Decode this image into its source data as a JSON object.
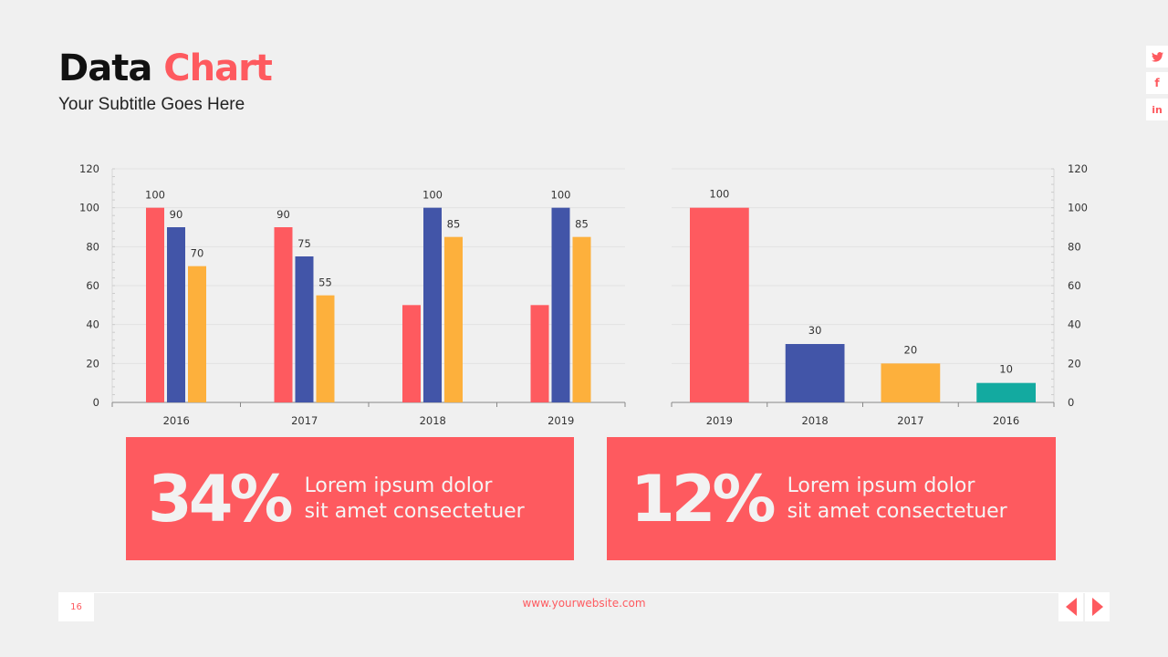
{
  "header": {
    "title_main": "Data",
    "title_accent": "Chart",
    "subtitle": "Your Subtitle Goes Here"
  },
  "social": [
    {
      "icon": "twitter-icon",
      "glyph": "🐦"
    },
    {
      "icon": "facebook-icon",
      "glyph": "f"
    },
    {
      "icon": "linkedin-icon",
      "glyph": "in"
    }
  ],
  "colors": {
    "accent": "#fe5a5f",
    "blue": "#4255a8",
    "orange": "#fdb03c",
    "teal": "#13aaa0"
  },
  "chart_data": [
    {
      "type": "bar",
      "categories": [
        "2016",
        "2017",
        "2018",
        "2019"
      ],
      "ylim": [
        0,
        120
      ],
      "yticks": [
        0,
        20,
        40,
        60,
        80,
        100,
        120
      ],
      "axis": "left",
      "grid": true,
      "series": [
        {
          "values": [
            100,
            90,
            50,
            50
          ],
          "labels": [
            "100",
            "90",
            "",
            ""
          ],
          "color": "#fe5a5f"
        },
        {
          "values": [
            90,
            75,
            100,
            100
          ],
          "labels": [
            "90",
            "75",
            "100",
            "100"
          ],
          "color": "#4255a8"
        },
        {
          "values": [
            70,
            55,
            85,
            85
          ],
          "labels": [
            "70",
            "55",
            "85",
            "85"
          ],
          "color": "#fdb03c"
        }
      ]
    },
    {
      "type": "bar",
      "categories": [
        "2019",
        "2018",
        "2017",
        "2016"
      ],
      "ylim": [
        0,
        120
      ],
      "yticks": [
        0,
        20,
        40,
        60,
        80,
        100,
        120
      ],
      "axis": "right",
      "grid": true,
      "values": [
        100,
        30,
        20,
        10
      ],
      "labels": [
        "100",
        "30",
        "20",
        "10"
      ],
      "colors": [
        "#fe5a5f",
        "#4255a8",
        "#fdb03c",
        "#13aaa0"
      ]
    }
  ],
  "cards": [
    {
      "value": "34%",
      "line1": "Lorem ipsum dolor",
      "line2": "sit amet consectetuer"
    },
    {
      "value": "12%",
      "line1": "Lorem ipsum dolor",
      "line2": "sit amet consectetuer"
    }
  ],
  "footer": {
    "page": "16",
    "website": "www.yourwebsite.com"
  }
}
